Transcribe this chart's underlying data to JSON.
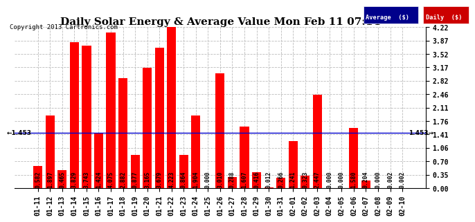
{
  "title": "Daily Solar Energy & Average Value Mon Feb 11 07:14",
  "copyright": "Copyright 2013 Cartronics.com",
  "categories": [
    "01-11",
    "01-12",
    "01-13",
    "01-14",
    "01-15",
    "01-16",
    "01-17",
    "01-18",
    "01-19",
    "01-20",
    "01-21",
    "01-22",
    "01-23",
    "01-24",
    "01-25",
    "01-26",
    "01-27",
    "01-28",
    "01-29",
    "01-30",
    "01-31",
    "02-01",
    "02-02",
    "02-03",
    "02-04",
    "02-05",
    "02-06",
    "02-07",
    "02-08",
    "02-09",
    "02-10"
  ],
  "values": [
    0.582,
    1.897,
    0.465,
    3.829,
    3.743,
    1.424,
    4.075,
    2.882,
    0.877,
    3.165,
    3.679,
    4.223,
    0.864,
    1.904,
    0.0,
    3.01,
    0.288,
    1.607,
    0.416,
    0.012,
    0.266,
    1.241,
    0.323,
    2.447,
    0.0,
    0.0,
    1.58,
    0.204,
    0.0,
    0.002,
    0.002
  ],
  "average": 1.453,
  "bar_color": "#ff0000",
  "avg_line_color": "#0000cd",
  "background_color": "#ffffff",
  "grid_color": "#bbbbbb",
  "ylim": [
    0.0,
    4.22
  ],
  "yticks": [
    0.0,
    0.35,
    0.7,
    1.06,
    1.41,
    1.76,
    2.11,
    2.46,
    2.82,
    3.17,
    3.52,
    3.87,
    4.22
  ],
  "title_fontsize": 11,
  "tick_fontsize": 7,
  "val_fontsize": 5.8,
  "legend_avg_color": "#00008b",
  "legend_daily_color": "#cc0000",
  "avg_label": "1.453"
}
